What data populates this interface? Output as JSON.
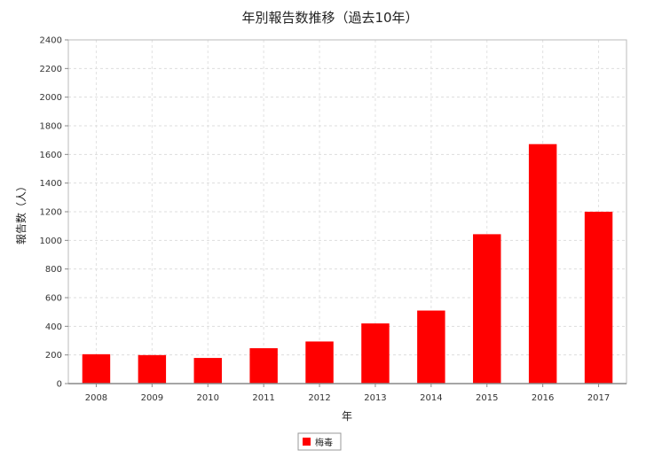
{
  "chart_data": {
    "type": "bar",
    "title": "年別報告数推移（過去10年）",
    "xlabel": "年",
    "ylabel": "報告数（人）",
    "categories": [
      "2008",
      "2009",
      "2010",
      "2011",
      "2012",
      "2013",
      "2014",
      "2015",
      "2016",
      "2017"
    ],
    "series": [
      {
        "name": "梅毒",
        "values": [
          205,
          199,
          179,
          247,
          294,
          420,
          510,
          1043,
          1672,
          1200
        ],
        "color": "#ff0000"
      }
    ],
    "ylim": [
      0,
      2400
    ],
    "yticks": [
      "0",
      "200",
      "400",
      "600",
      "800",
      "1000",
      "1200",
      "1400",
      "1600",
      "1800",
      "2000",
      "2200",
      "2400"
    ],
    "grid": true,
    "legend_position": "bottom"
  }
}
